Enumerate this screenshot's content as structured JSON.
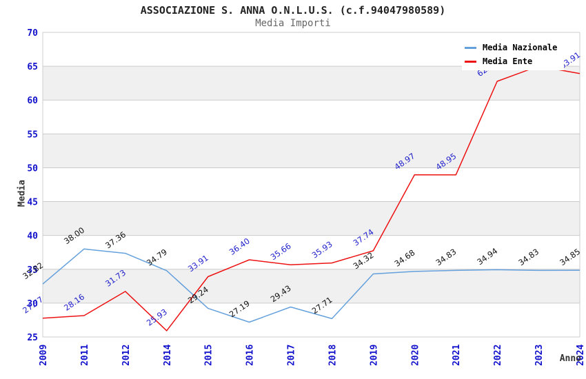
{
  "header": {
    "title": "ASSOCIAZIONE S. ANNA O.N.L.U.S. (c.f.94047980589)",
    "subtitle": "Media Importi"
  },
  "axes": {
    "y_title": "Media",
    "x_title": "Anno"
  },
  "legend": {
    "items": [
      {
        "label": "Media Nazionale",
        "color": "#64a0dc"
      },
      {
        "label": "Media Ente",
        "color": "#ee1111"
      }
    ]
  },
  "chart_data": {
    "type": "line",
    "title": "ASSOCIAZIONE S. ANNA O.N.L.U.S. (c.f.94047980589)",
    "subtitle": "Media Importi",
    "xlabel": "Anno",
    "ylabel": "Media",
    "categories": [
      "2009",
      "2011",
      "2012",
      "2014",
      "2015",
      "2016",
      "2017",
      "2018",
      "2019",
      "2020",
      "2021",
      "2022",
      "2023",
      "2024"
    ],
    "series": [
      {
        "name": "Media Nazionale",
        "color": "#64a0dc",
        "label_color": "#111111",
        "values": [
          32.82,
          38.0,
          37.36,
          34.79,
          29.24,
          27.19,
          29.43,
          27.71,
          34.32,
          34.68,
          34.83,
          34.94,
          34.83,
          34.85
        ],
        "labels": [
          "32.82",
          "38.00",
          "37.36",
          "34.79",
          "29.24",
          "27.19",
          "29.43",
          "27.71",
          "34.32",
          "34.68",
          "34.83",
          "34.94",
          "34.83",
          "34.85"
        ]
      },
      {
        "name": "Media Ente",
        "color": "#ee1111",
        "label_color": "#2222cc",
        "values": [
          27.77,
          28.16,
          31.73,
          25.93,
          33.91,
          36.4,
          35.66,
          35.93,
          37.74,
          48.97,
          48.95,
          62.77,
          65.01,
          63.91
        ],
        "labels": [
          "27.77",
          "28.16",
          "31.73",
          "25.93",
          "33.91",
          "36.40",
          "35.66",
          "35.93",
          "37.74",
          "48.97",
          "48.95",
          "62.77",
          "65.01",
          "63.91"
        ]
      }
    ],
    "ylim": [
      25,
      70
    ],
    "ytick_step": 5,
    "grid": true,
    "alternating_bands": true,
    "legend_position": "top-right",
    "band_fill": "#f0f0f0",
    "grid_color": "#cccccc",
    "tick_label_color": "#1111cc"
  }
}
